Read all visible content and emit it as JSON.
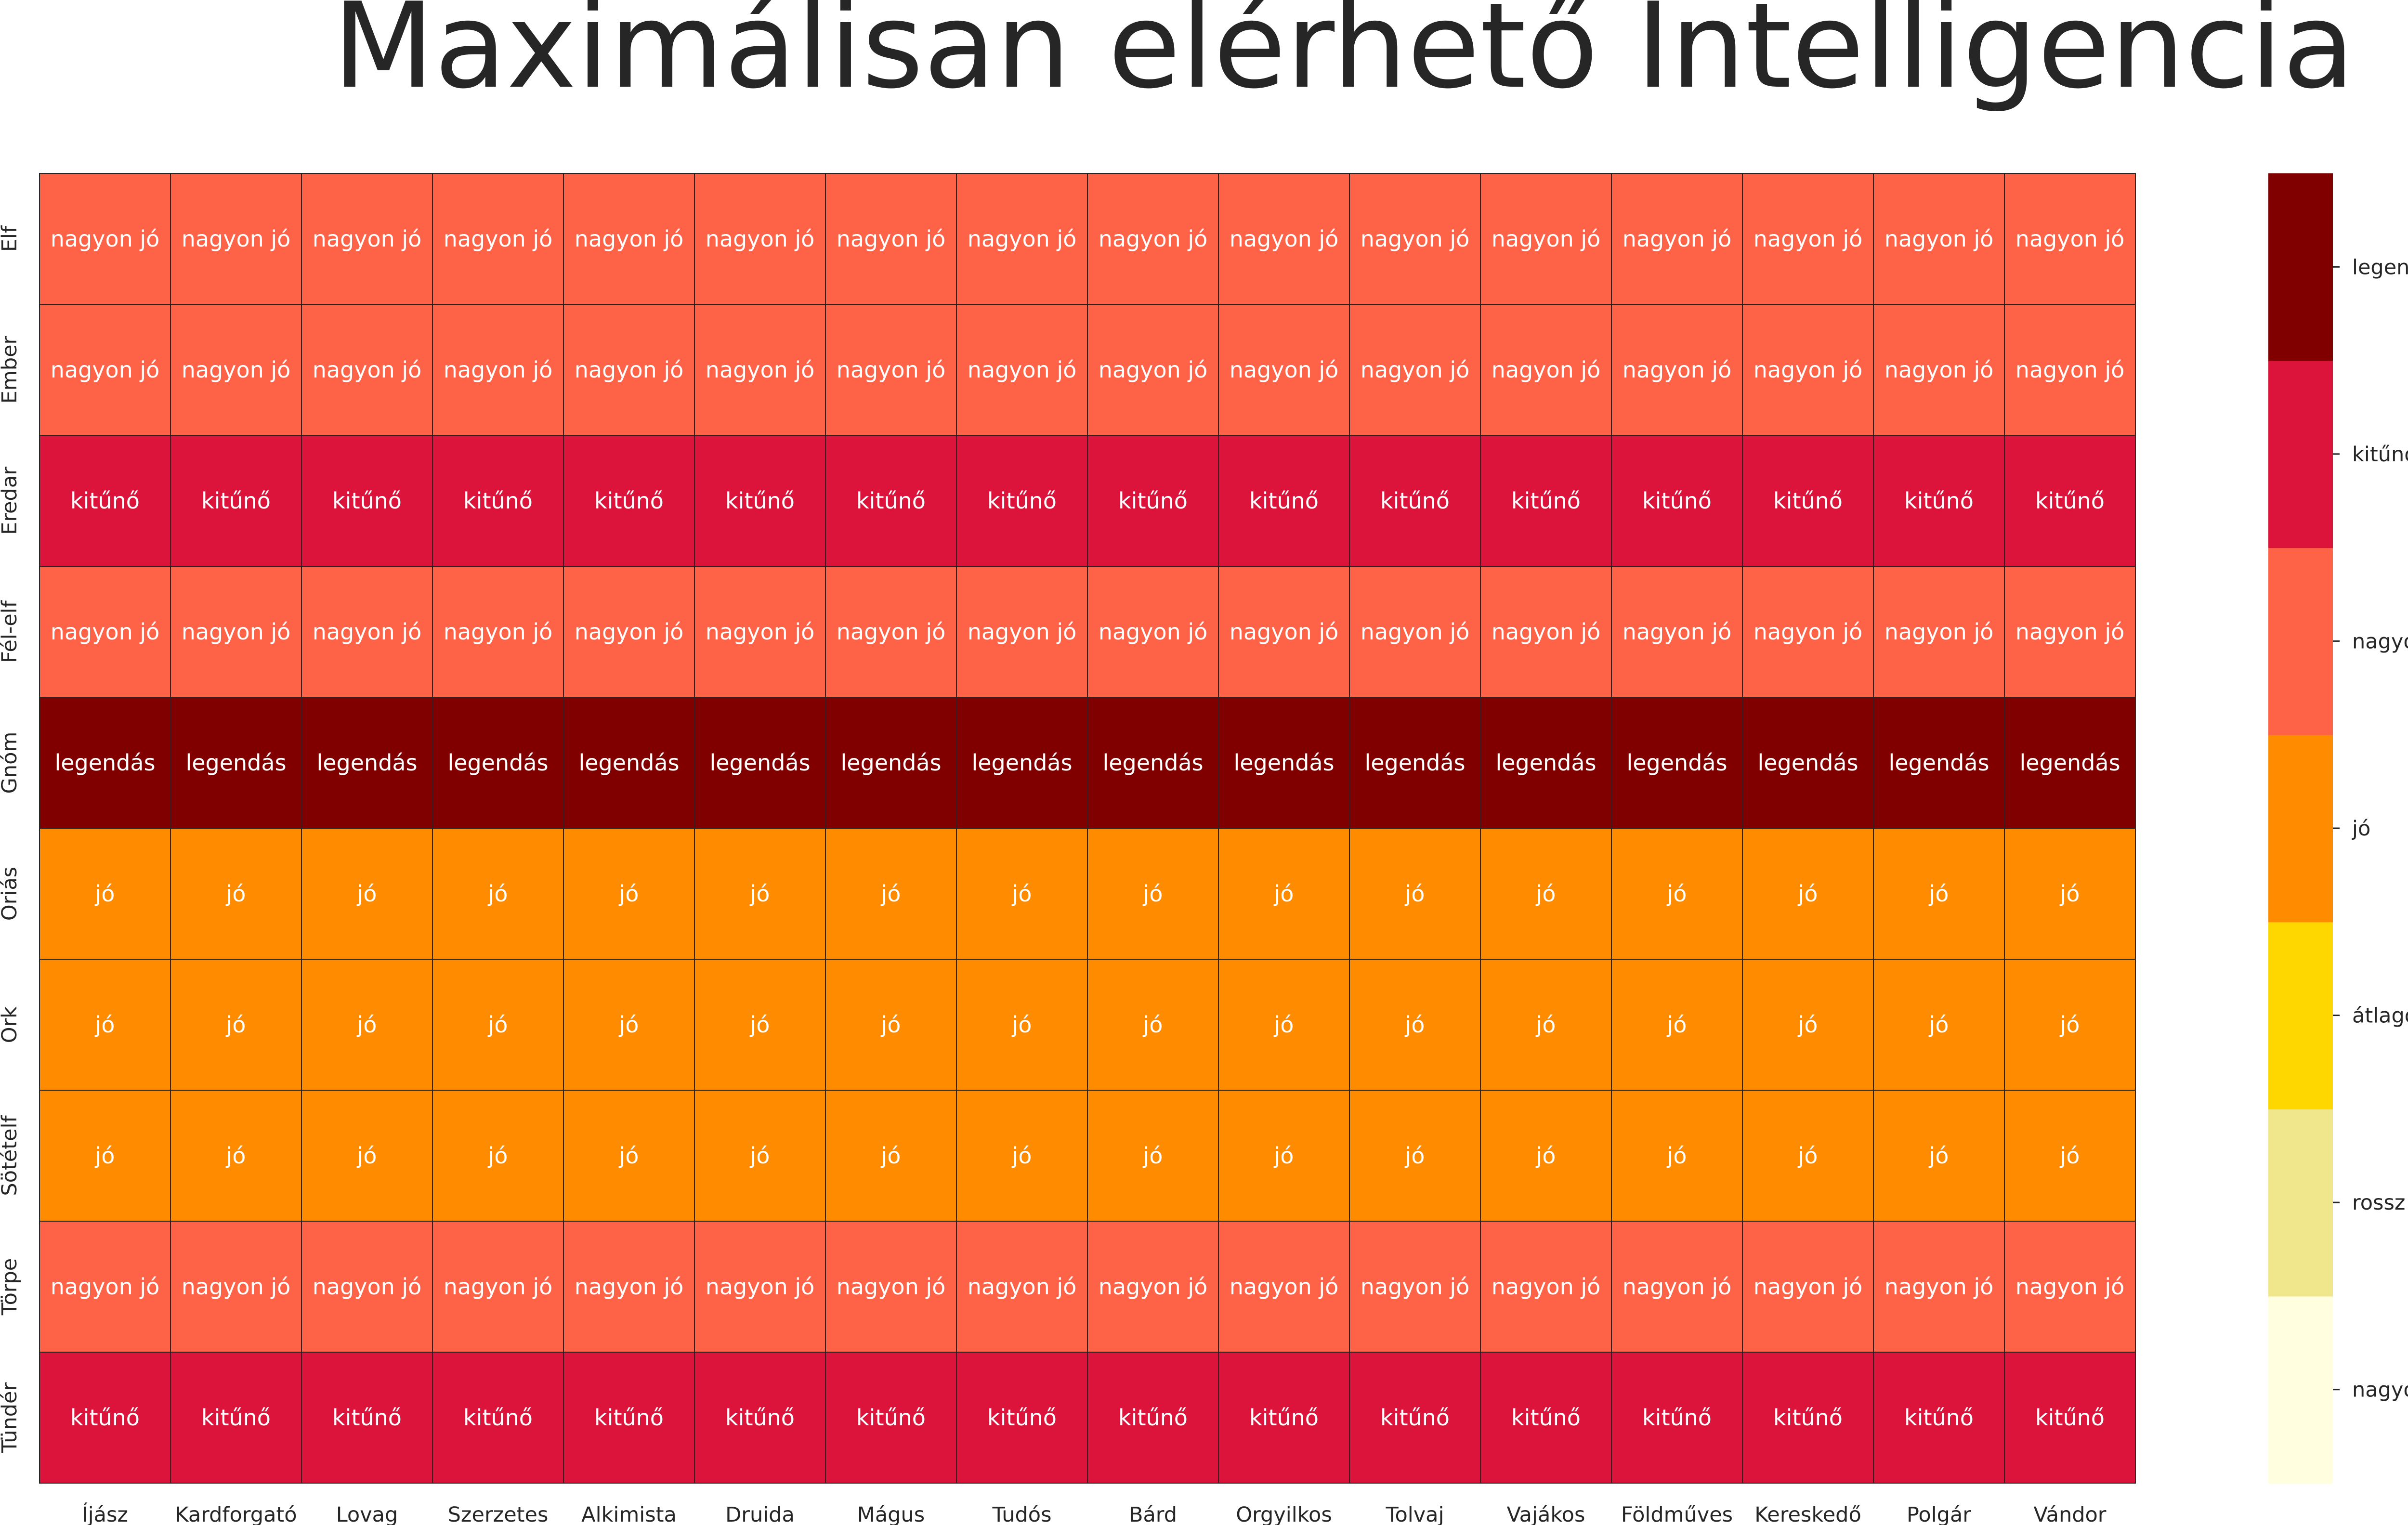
{
  "chart_data": {
    "type": "heatmap",
    "title": "Maximálisan elérhető Intelligencia",
    "x_categories": [
      "Íjász",
      "Kardforgató",
      "Lovag",
      "Szerzetes",
      "Alkimista",
      "Druida",
      "Mágus",
      "Tudós",
      "Bárd",
      "Orgyilkos",
      "Tolvaj",
      "Vajákos",
      "Földműves",
      "Kereskedő",
      "Polgár",
      "Vándor"
    ],
    "y_categories": [
      "Elf",
      "Ember",
      "Eredar",
      "Fél-elf",
      "Gnóm",
      "Óriás",
      "Ork",
      "Sötételf",
      "Törpe",
      "Tündér"
    ],
    "levels": [
      "nagyon rossz",
      "rossz",
      "átlagos",
      "jó",
      "nagyon jó",
      "kitűnő",
      "legendás"
    ],
    "level_colors": [
      "#FFFFE0",
      "#F0E68C",
      "#FFD700",
      "#FF8C00",
      "#FF6347",
      "#DC143C",
      "#800000"
    ],
    "values": [
      [
        "nagyon jó",
        "nagyon jó",
        "nagyon jó",
        "nagyon jó",
        "nagyon jó",
        "nagyon jó",
        "nagyon jó",
        "nagyon jó",
        "nagyon jó",
        "nagyon jó",
        "nagyon jó",
        "nagyon jó",
        "nagyon jó",
        "nagyon jó",
        "nagyon jó",
        "nagyon jó"
      ],
      [
        "nagyon jó",
        "nagyon jó",
        "nagyon jó",
        "nagyon jó",
        "nagyon jó",
        "nagyon jó",
        "nagyon jó",
        "nagyon jó",
        "nagyon jó",
        "nagyon jó",
        "nagyon jó",
        "nagyon jó",
        "nagyon jó",
        "nagyon jó",
        "nagyon jó",
        "nagyon jó"
      ],
      [
        "kitűnő",
        "kitűnő",
        "kitűnő",
        "kitűnő",
        "kitűnő",
        "kitűnő",
        "kitűnő",
        "kitűnő",
        "kitűnő",
        "kitűnő",
        "kitűnő",
        "kitűnő",
        "kitűnő",
        "kitűnő",
        "kitűnő",
        "kitűnő"
      ],
      [
        "nagyon jó",
        "nagyon jó",
        "nagyon jó",
        "nagyon jó",
        "nagyon jó",
        "nagyon jó",
        "nagyon jó",
        "nagyon jó",
        "nagyon jó",
        "nagyon jó",
        "nagyon jó",
        "nagyon jó",
        "nagyon jó",
        "nagyon jó",
        "nagyon jó",
        "nagyon jó"
      ],
      [
        "legendás",
        "legendás",
        "legendás",
        "legendás",
        "legendás",
        "legendás",
        "legendás",
        "legendás",
        "legendás",
        "legendás",
        "legendás",
        "legendás",
        "legendás",
        "legendás",
        "legendás",
        "legendás"
      ],
      [
        "jó",
        "jó",
        "jó",
        "jó",
        "jó",
        "jó",
        "jó",
        "jó",
        "jó",
        "jó",
        "jó",
        "jó",
        "jó",
        "jó",
        "jó",
        "jó"
      ],
      [
        "jó",
        "jó",
        "jó",
        "jó",
        "jó",
        "jó",
        "jó",
        "jó",
        "jó",
        "jó",
        "jó",
        "jó",
        "jó",
        "jó",
        "jó",
        "jó"
      ],
      [
        "jó",
        "jó",
        "jó",
        "jó",
        "jó",
        "jó",
        "jó",
        "jó",
        "jó",
        "jó",
        "jó",
        "jó",
        "jó",
        "jó",
        "jó",
        "jó"
      ],
      [
        "nagyon jó",
        "nagyon jó",
        "nagyon jó",
        "nagyon jó",
        "nagyon jó",
        "nagyon jó",
        "nagyon jó",
        "nagyon jó",
        "nagyon jó",
        "nagyon jó",
        "nagyon jó",
        "nagyon jó",
        "nagyon jó",
        "nagyon jó",
        "nagyon jó",
        "nagyon jó"
      ],
      [
        "kitűnő",
        "kitűnő",
        "kitűnő",
        "kitűnő",
        "kitűnő",
        "kitűnő",
        "kitűnő",
        "kitűnő",
        "kitűnő",
        "kitűnő",
        "kitűnő",
        "kitűnő",
        "kitűnő",
        "kitűnő",
        "kitűnő",
        "kitűnő"
      ]
    ],
    "colorbar": true,
    "colorbar_position": "right",
    "grid": true
  }
}
